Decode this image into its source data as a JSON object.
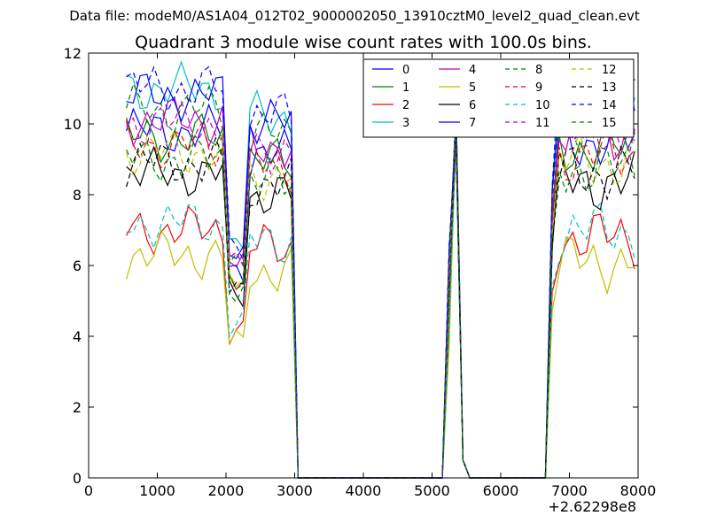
{
  "header": "Data file: modeM0/AS1A04_012T02_9000002050_13910cztM0_level2_quad_clean.evt",
  "chart_data": {
    "type": "line",
    "title": "Quadrant 3 module wise count rates with 100.0s bins.",
    "xlabel": "",
    "ylabel": "",
    "x_offset_label": "+2.62298e8",
    "xlim": [
      0,
      8000
    ],
    "ylim": [
      0,
      12
    ],
    "xticks": [
      0,
      1000,
      2000,
      3000,
      4000,
      5000,
      6000,
      7000,
      8000
    ],
    "yticks": [
      0,
      2,
      4,
      6,
      8,
      10,
      12
    ],
    "grid": false,
    "legend_position": "top-right",
    "legend_columns": 4,
    "segments": [
      {
        "x_start": 550,
        "x_end": 2950
      },
      {
        "x_start": 3050,
        "x_end": 5150
      },
      {
        "x_start": 5250,
        "x_end": 5500
      },
      {
        "x_start": 5550,
        "x_end": 6650
      },
      {
        "x_start": 6750,
        "x_end": 7950
      }
    ],
    "series": [
      {
        "name": "0",
        "color": "#0000ff",
        "dash": false,
        "level": 9.8
      },
      {
        "name": "1",
        "color": "#008000",
        "dash": false,
        "level": 9.6
      },
      {
        "name": "2",
        "color": "#ff0000",
        "dash": false,
        "level": 7.0
      },
      {
        "name": "3",
        "color": "#00bfbf",
        "dash": false,
        "level": 11.0
      },
      {
        "name": "4",
        "color": "#bf00bf",
        "dash": false,
        "level": 10.1
      },
      {
        "name": "5",
        "color": "#bfbf00",
        "dash": false,
        "level": 6.3
      },
      {
        "name": "6",
        "color": "#000000",
        "dash": false,
        "level": 8.6
      },
      {
        "name": "7",
        "color": "#0000ff",
        "dash": false,
        "level": 10.8
      },
      {
        "name": "8",
        "color": "#008000",
        "dash": true,
        "level": 10.4
      },
      {
        "name": "9",
        "color": "#ff0000",
        "dash": true,
        "level": 9.4
      },
      {
        "name": "10",
        "color": "#00bfbf",
        "dash": true,
        "level": 7.2
      },
      {
        "name": "11",
        "color": "#bf00bf",
        "dash": true,
        "level": 10.0
      },
      {
        "name": "12",
        "color": "#bfbf00",
        "dash": true,
        "level": 9.2
      },
      {
        "name": "13",
        "color": "#000000",
        "dash": true,
        "level": 8.9
      },
      {
        "name": "14",
        "color": "#0000ff",
        "dash": true,
        "level": 11.0
      },
      {
        "name": "15",
        "color": "#008000",
        "dash": true,
        "level": 9.0
      }
    ]
  }
}
